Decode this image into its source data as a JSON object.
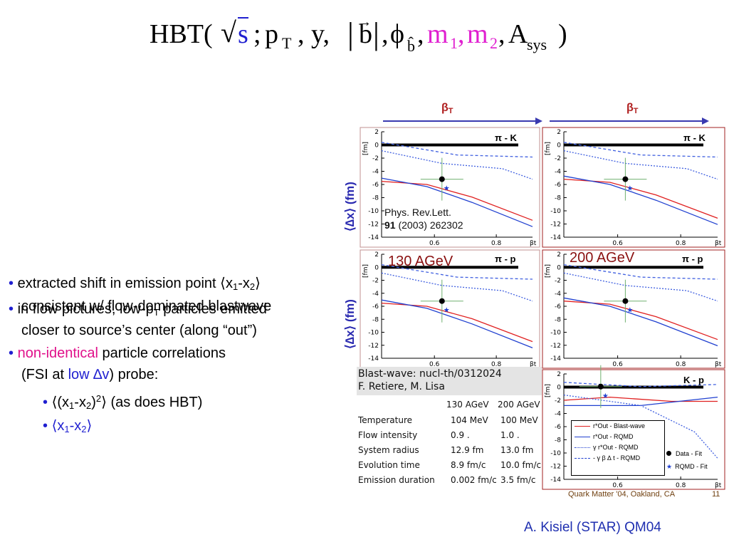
{
  "formula": {
    "hbt": "HBT(",
    "sqrt_s": "s",
    "semicolon": ";",
    "p": "p",
    "p_sub": "T",
    "y": ", y,",
    "b": "b",
    "comma_phi": ",",
    "phi": "ϕ",
    "phi_sub": "b̂",
    "comma2": ",",
    "m1": "m",
    "m1_sub": "1",
    "comma3": ",",
    "m2": "m",
    "m2_sub": "2",
    "comma4": ",",
    "A": "A",
    "A_sub": "sys",
    "close": ")"
  },
  "beta_labels": {
    "left": "βT",
    "right": "βT",
    "sub": "T",
    "beta": "β"
  },
  "bullets": [
    {
      "pre": "extracted shift in emission point ⟨x",
      "s1": "1",
      "mid": "-x",
      "s2": "2",
      "post": "⟩"
    },
    {
      "text": "consistent w/ flow-dominated blastwave"
    },
    {
      "text": "in flow pictures, low-p",
      "sub": "T",
      "post": " particles emitted"
    },
    {
      "text": "closer to source’s center (along “out”)"
    },
    {
      "red": "non-identical",
      "rest": " particle correlations"
    },
    {
      "pre": "(FSI at ",
      "blue": "low ∆v",
      "post": ") probe:"
    },
    {
      "pre": "⟨(x",
      "s1": "1",
      "mid": "-x",
      "s2": "2",
      "post": ")",
      "sup": "2",
      "tail": "⟩ (as does HBT)"
    },
    {
      "pre": "⟨x",
      "s1": "1",
      "mid": "-x",
      "s2": "2",
      "post": "⟩"
    }
  ],
  "plots": {
    "ylabel": "⟨∆x⟩ (fm)",
    "unit": "[fm]",
    "yticks": [
      "2",
      "0",
      "-2",
      "-4",
      "-6",
      "-8",
      "-10",
      "-12",
      "-14"
    ],
    "xticks": [
      "0.6",
      "0.8"
    ],
    "xvar": "β",
    "xvar_sub": "t",
    "panel_tl_label": "π - K",
    "panel_tr_label": "π - K",
    "panel_ml_label": "π - p",
    "panel_mr_label": "π - p",
    "panel_br_label": "K - p",
    "energy_130": "130 AGeV",
    "energy_200": "200 AGeV",
    "ref_line1": "Phys. Rev.Lett.",
    "ref_vol": "91",
    "ref_rest": " (2003) 262302",
    "legend": [
      "r*Out - Blast-wave",
      "r*Out - RQMD",
      "γ r*Out - RQMD",
      "- γ β ∆ t - RQMD"
    ],
    "legend_right": [
      "Data - Fit",
      "RQMD - Fit"
    ]
  },
  "table": {
    "title1": "Blast-wave: nucl-th/0312024",
    "title2": "F. Retiere, M. Lisa",
    "headers": [
      "130 AGeV",
      "200 AGeV"
    ],
    "rows": [
      [
        "Temperature",
        "104 MeV",
        "100 MeV"
      ],
      [
        "Flow intensity",
        "0.9 .",
        "1.0 ."
      ],
      [
        "System radius",
        "12.9 fm",
        "13.0 fm"
      ],
      [
        "Evolution time",
        "8.9 fm/c",
        "10.0 fm/c"
      ],
      [
        "Emission duration",
        "0.002 fm/c",
        "3.5 fm/c"
      ]
    ]
  },
  "footer": "Quark Matter '04, Oakland, CA",
  "page_number": "11",
  "author": "A. Kisiel (STAR) QM04"
}
